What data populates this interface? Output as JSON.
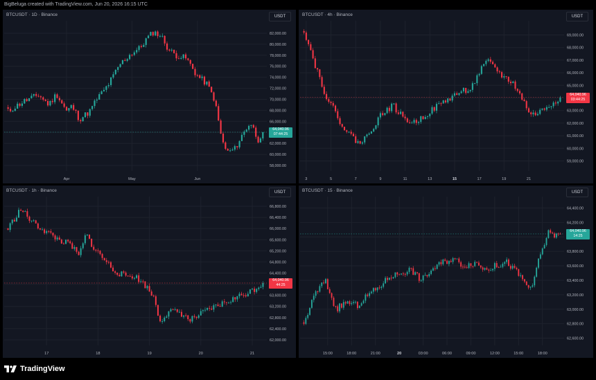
{
  "header": {
    "credit": "BigBeluga created with TradingView.com, Jun 20, 2026 16:15 UTC"
  },
  "footer": {
    "brand": "TradingView"
  },
  "colors": {
    "up": "#26a69a",
    "down": "#f23645",
    "background": "#131722",
    "grid": "#1e222d",
    "axis_text": "#b2b5be"
  },
  "chart_data": [
    {
      "type": "candlestick",
      "title": "BTCUSDT · 1D · Binance",
      "currency": "USDT",
      "ylim": [
        57000,
        83500
      ],
      "y_ticks": [
        "82,000.00",
        "80,000.00",
        "78,000.00",
        "76,000.00",
        "74,000.00",
        "72,000.00",
        "70,000.00",
        "68,000.00",
        "66,000.00",
        "64,000.00",
        "62,000.00",
        "60,000.00",
        "58,000.00"
      ],
      "x_ticks": [
        "Apr",
        "May",
        "Jun"
      ],
      "last_price": "64,040.96",
      "countdown": "07:44:25",
      "last_color": "up",
      "x_count": 110,
      "x_tick_pos": [
        25,
        53,
        81
      ],
      "close_path": [
        [
          0,
          67800
        ],
        [
          6,
          69600
        ],
        [
          12,
          70800
        ],
        [
          16,
          69000
        ],
        [
          19,
          71000
        ],
        [
          23,
          67800
        ],
        [
          25,
          68800
        ],
        [
          28,
          66400
        ],
        [
          32,
          67800
        ],
        [
          35,
          70200
        ],
        [
          38,
          71800
        ],
        [
          40,
          73200
        ],
        [
          44,
          76400
        ],
        [
          48,
          78200
        ],
        [
          52,
          79400
        ],
        [
          54,
          80800
        ],
        [
          57,
          82200
        ],
        [
          60,
          81600
        ],
        [
          63,
          79000
        ],
        [
          66,
          78000
        ],
        [
          70,
          77400
        ],
        [
          74,
          74400
        ],
        [
          78,
          72800
        ],
        [
          81,
          70000
        ],
        [
          84,
          62400
        ],
        [
          86,
          60400
        ],
        [
          89,
          61000
        ],
        [
          92,
          63600
        ],
        [
          95,
          65800
        ],
        [
          96,
          65000
        ],
        [
          98,
          62600
        ],
        [
          100,
          64040
        ]
      ],
      "seed": 11
    },
    {
      "type": "candlestick",
      "title": "BTCUSDT · 4h · Binance",
      "currency": "USDT",
      "ylim": [
        58200,
        69800
      ],
      "y_ticks": [
        "69,000.00",
        "68,000.00",
        "67,000.00",
        "66,000.00",
        "65,000.00",
        "64,000.00",
        "63,000.00",
        "62,000.00",
        "61,000.00",
        "60,000.00",
        "59,000.00"
      ],
      "x_ticks": [
        "3",
        "5",
        "7",
        "9",
        "11",
        "13",
        "15",
        "17",
        "19",
        "21"
      ],
      "bold_ticks": [
        "15"
      ],
      "last_price": "64,040.96",
      "countdown": "03:44:25",
      "last_color": "down",
      "x_count": 115,
      "x_tick_pos": [
        1,
        12,
        23,
        34,
        45,
        56,
        67,
        78,
        89,
        100
      ],
      "close_path": [
        [
          0,
          69400
        ],
        [
          4,
          66800
        ],
        [
          8,
          64400
        ],
        [
          12,
          62800
        ],
        [
          16,
          61400
        ],
        [
          20,
          60600
        ],
        [
          22,
          60400
        ],
        [
          26,
          61600
        ],
        [
          30,
          62800
        ],
        [
          34,
          63400
        ],
        [
          38,
          62400
        ],
        [
          42,
          62000
        ],
        [
          46,
          62600
        ],
        [
          50,
          63200
        ],
        [
          55,
          63900
        ],
        [
          60,
          64500
        ],
        [
          64,
          64800
        ],
        [
          67,
          66000
        ],
        [
          70,
          66900
        ],
        [
          73,
          66400
        ],
        [
          76,
          65700
        ],
        [
          80,
          65200
        ],
        [
          84,
          63700
        ],
        [
          87,
          62600
        ],
        [
          91,
          63000
        ],
        [
          95,
          63600
        ],
        [
          98,
          64040
        ]
      ],
      "seed": 22
    },
    {
      "type": "candlestick",
      "title": "BTCUSDT · 1h · Binance",
      "currency": "USDT",
      "ylim": [
        61800,
        67000
      ],
      "y_ticks": [
        "66,800.00",
        "66,400.00",
        "66,000.00",
        "65,600.00",
        "65,200.00",
        "64,800.00",
        "64,400.00",
        "64,000.00",
        "63,600.00",
        "63,200.00",
        "62,800.00",
        "62,400.00",
        "62,000.00"
      ],
      "x_ticks": [
        "17",
        "18",
        "19",
        "20",
        "21"
      ],
      "last_price": "64,040.96",
      "countdown": "44:25",
      "last_color": "down",
      "x_count": 120,
      "x_tick_pos": [
        18,
        42,
        66,
        90,
        114
      ],
      "close_path": [
        [
          0,
          66000
        ],
        [
          5,
          66700
        ],
        [
          10,
          66200
        ],
        [
          15,
          65900
        ],
        [
          20,
          65600
        ],
        [
          25,
          65400
        ],
        [
          28,
          65000
        ],
        [
          31,
          65800
        ],
        [
          34,
          65300
        ],
        [
          38,
          64900
        ],
        [
          42,
          64500
        ],
        [
          46,
          64300
        ],
        [
          50,
          64300
        ],
        [
          54,
          64000
        ],
        [
          58,
          63500
        ],
        [
          60,
          62700
        ],
        [
          64,
          63000
        ],
        [
          68,
          63000
        ],
        [
          72,
          62700
        ],
        [
          76,
          62900
        ],
        [
          80,
          63100
        ],
        [
          85,
          63300
        ],
        [
          90,
          63500
        ],
        [
          95,
          63700
        ],
        [
          99,
          63900
        ],
        [
          101,
          64040
        ]
      ],
      "seed": 33
    },
    {
      "type": "candlestick",
      "title": "BTCUSDT · 15 · Binance",
      "currency": "USDT",
      "ylim": [
        62500,
        64500
      ],
      "y_ticks": [
        "64,400.00",
        "64,200.00",
        "64,000.00",
        "63,800.00",
        "63,600.00",
        "63,400.00",
        "63,200.00",
        "63,000.00",
        "62,800.00",
        "62,600.00"
      ],
      "x_ticks": [
        "15:00",
        "18:00",
        "21:00",
        "20",
        "03:00",
        "06:00",
        "09:00",
        "12:00",
        "15:00",
        "18:00"
      ],
      "bold_ticks": [
        "20"
      ],
      "last_price": "64,040.96",
      "countdown": "14:25",
      "last_color": "up",
      "x_count": 130,
      "x_tick_pos": [
        12,
        24,
        36,
        48,
        60,
        72,
        84,
        96,
        108,
        120
      ],
      "close_path": [
        [
          0,
          62800
        ],
        [
          4,
          63200
        ],
        [
          8,
          63400
        ],
        [
          12,
          63000
        ],
        [
          16,
          63100
        ],
        [
          20,
          63050
        ],
        [
          24,
          63200
        ],
        [
          28,
          63300
        ],
        [
          32,
          63450
        ],
        [
          36,
          63500
        ],
        [
          40,
          63550
        ],
        [
          44,
          63400
        ],
        [
          48,
          63550
        ],
        [
          52,
          63650
        ],
        [
          56,
          63700
        ],
        [
          60,
          63600
        ],
        [
          64,
          63650
        ],
        [
          68,
          63550
        ],
        [
          72,
          63600
        ],
        [
          76,
          63650
        ],
        [
          80,
          63500
        ],
        [
          84,
          63300
        ],
        [
          86,
          63350
        ],
        [
          88,
          63700
        ],
        [
          90,
          63900
        ],
        [
          92,
          64100
        ],
        [
          94,
          64000
        ],
        [
          96,
          64040
        ]
      ],
      "seed": 44
    }
  ]
}
